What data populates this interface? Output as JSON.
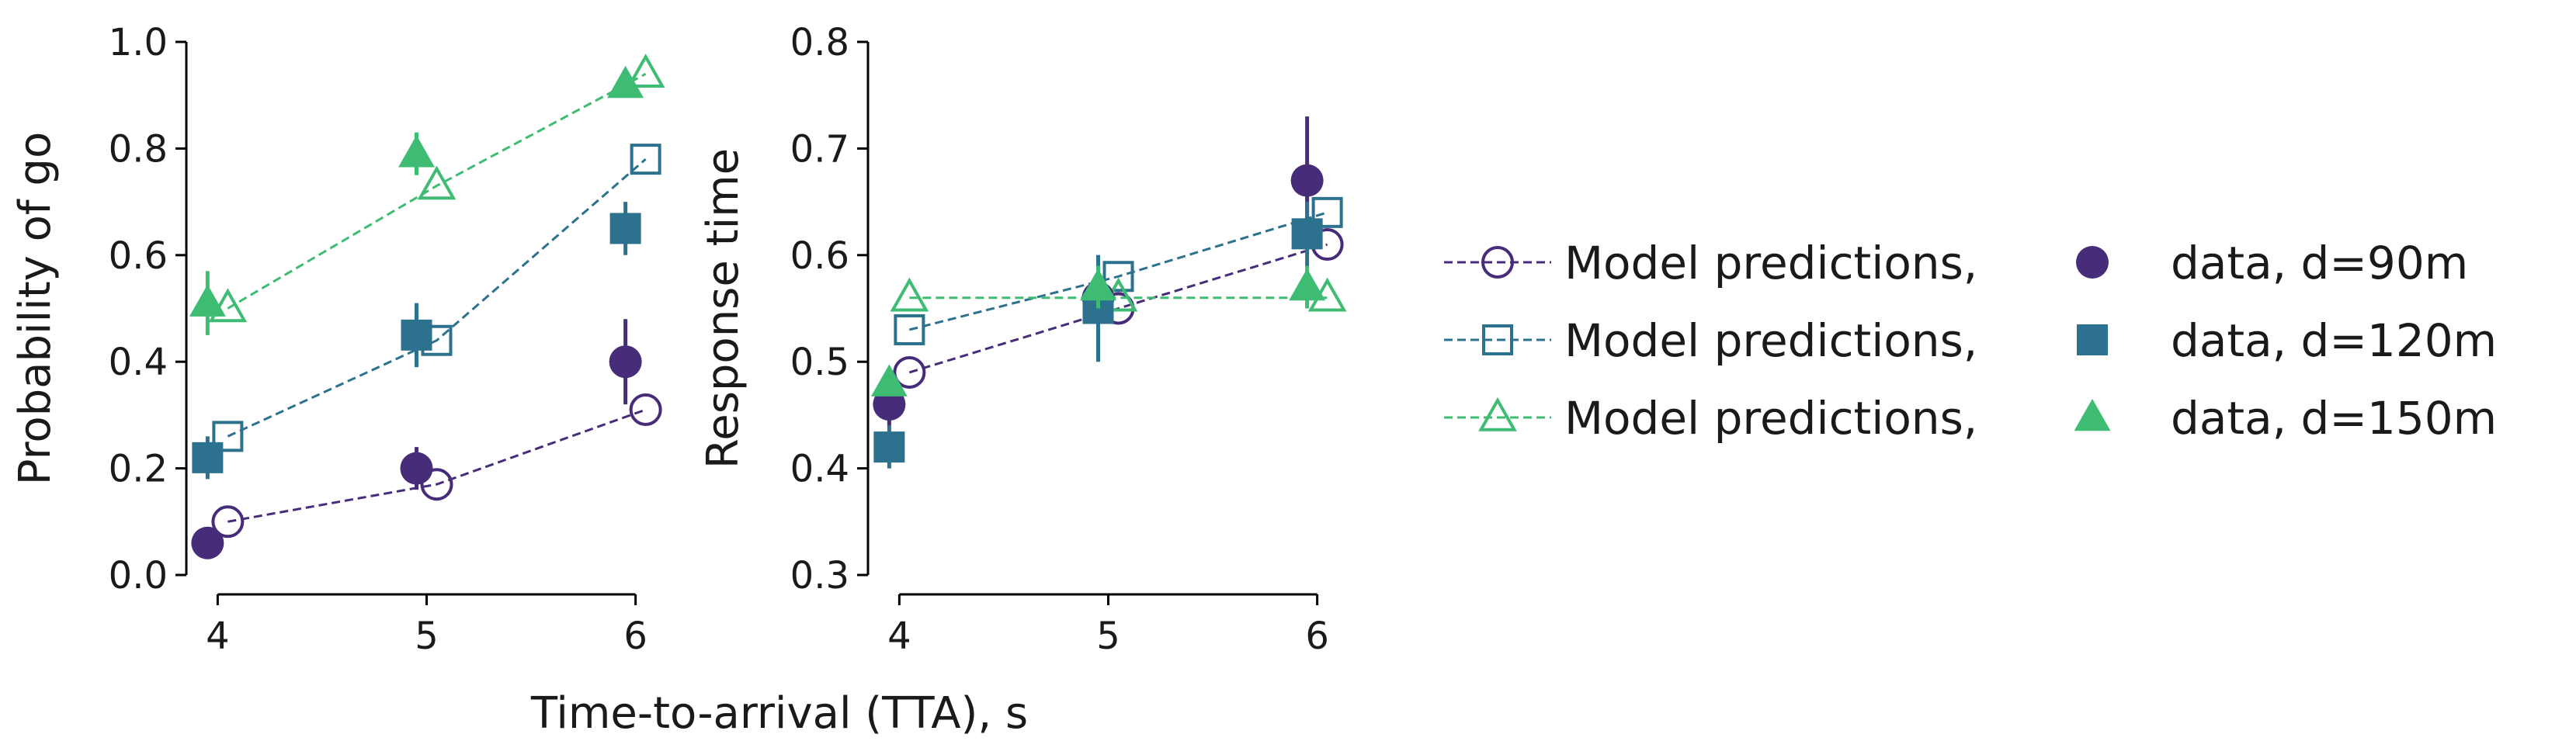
{
  "colors": {
    "d90": "#472c7a",
    "d120": "#2c728e",
    "d150": "#3fbc73",
    "axis": "#000000"
  },
  "xlabel": "Time-to-arrival (TTA), s",
  "legend": {
    "placement": "right",
    "rows": [
      {
        "model_label": "Model predictions,",
        "data_label": "data, d=90m",
        "model_marker": "circle-open",
        "data_marker": "circle-filled"
      },
      {
        "model_label": "Model predictions,",
        "data_label": "data, d=120m",
        "model_marker": "square-open",
        "data_marker": "square-filled"
      },
      {
        "model_label": "Model predictions,",
        "data_label": "data, d=150m",
        "model_marker": "triangle-open",
        "data_marker": "triangle-filled"
      }
    ]
  },
  "chart_data": [
    {
      "type": "scatter",
      "ylabel": "Probability of go",
      "xlim": [
        3.85,
        6.15
      ],
      "ylim": [
        0.0,
        1.0
      ],
      "xticks": [
        "4",
        "5",
        "6"
      ],
      "yticks": [
        "0.0",
        "0.2",
        "0.4",
        "0.6",
        "0.8",
        "1.0"
      ],
      "x": [
        4,
        5,
        6
      ],
      "series": [
        {
          "group": "d90",
          "kind": "model",
          "marker": "circle-open",
          "values": [
            0.1,
            0.17,
            0.31
          ]
        },
        {
          "group": "d90",
          "kind": "data",
          "marker": "circle-filled",
          "values": [
            0.06,
            0.2,
            0.4
          ],
          "err": [
            0.01,
            0.04,
            0.08
          ]
        },
        {
          "group": "d120",
          "kind": "model",
          "marker": "square-open",
          "values": [
            0.26,
            0.44,
            0.78
          ]
        },
        {
          "group": "d120",
          "kind": "data",
          "marker": "square-filled",
          "values": [
            0.22,
            0.45,
            0.65
          ],
          "err": [
            0.04,
            0.06,
            0.05
          ]
        },
        {
          "group": "d150",
          "kind": "model",
          "marker": "triangle-open",
          "values": [
            0.5,
            0.73,
            0.94
          ]
        },
        {
          "group": "d150",
          "kind": "data",
          "marker": "triangle-filled",
          "values": [
            0.51,
            0.79,
            0.92
          ],
          "err": [
            0.06,
            0.04,
            0.02
          ]
        }
      ]
    },
    {
      "type": "scatter",
      "ylabel": "Response time",
      "xlim": [
        3.85,
        6.15
      ],
      "ylim": [
        0.3,
        0.8
      ],
      "xticks": [
        "4",
        "5",
        "6"
      ],
      "yticks": [
        "0.3",
        "0.4",
        "0.5",
        "0.6",
        "0.7",
        "0.8"
      ],
      "x": [
        4,
        5,
        6
      ],
      "series": [
        {
          "group": "d90",
          "kind": "model",
          "marker": "circle-open",
          "values": [
            0.49,
            0.55,
            0.61
          ]
        },
        {
          "group": "d90",
          "kind": "data",
          "marker": "circle-filled",
          "values": [
            0.46,
            0.56,
            0.67
          ],
          "err": [
            0.02,
            0.04,
            0.06
          ]
        },
        {
          "group": "d120",
          "kind": "model",
          "marker": "square-open",
          "values": [
            0.53,
            0.58,
            0.64
          ]
        },
        {
          "group": "d120",
          "kind": "data",
          "marker": "square-filled",
          "values": [
            0.42,
            0.55,
            0.62
          ],
          "err": [
            0.02,
            0.05,
            0.03
          ]
        },
        {
          "group": "d150",
          "kind": "model",
          "marker": "triangle-open",
          "values": [
            0.56,
            0.56,
            0.56
          ]
        },
        {
          "group": "d150",
          "kind": "data",
          "marker": "triangle-filled",
          "values": [
            0.48,
            0.57,
            0.57
          ],
          "err": [
            0.01,
            0.02,
            0.02
          ]
        }
      ]
    }
  ]
}
